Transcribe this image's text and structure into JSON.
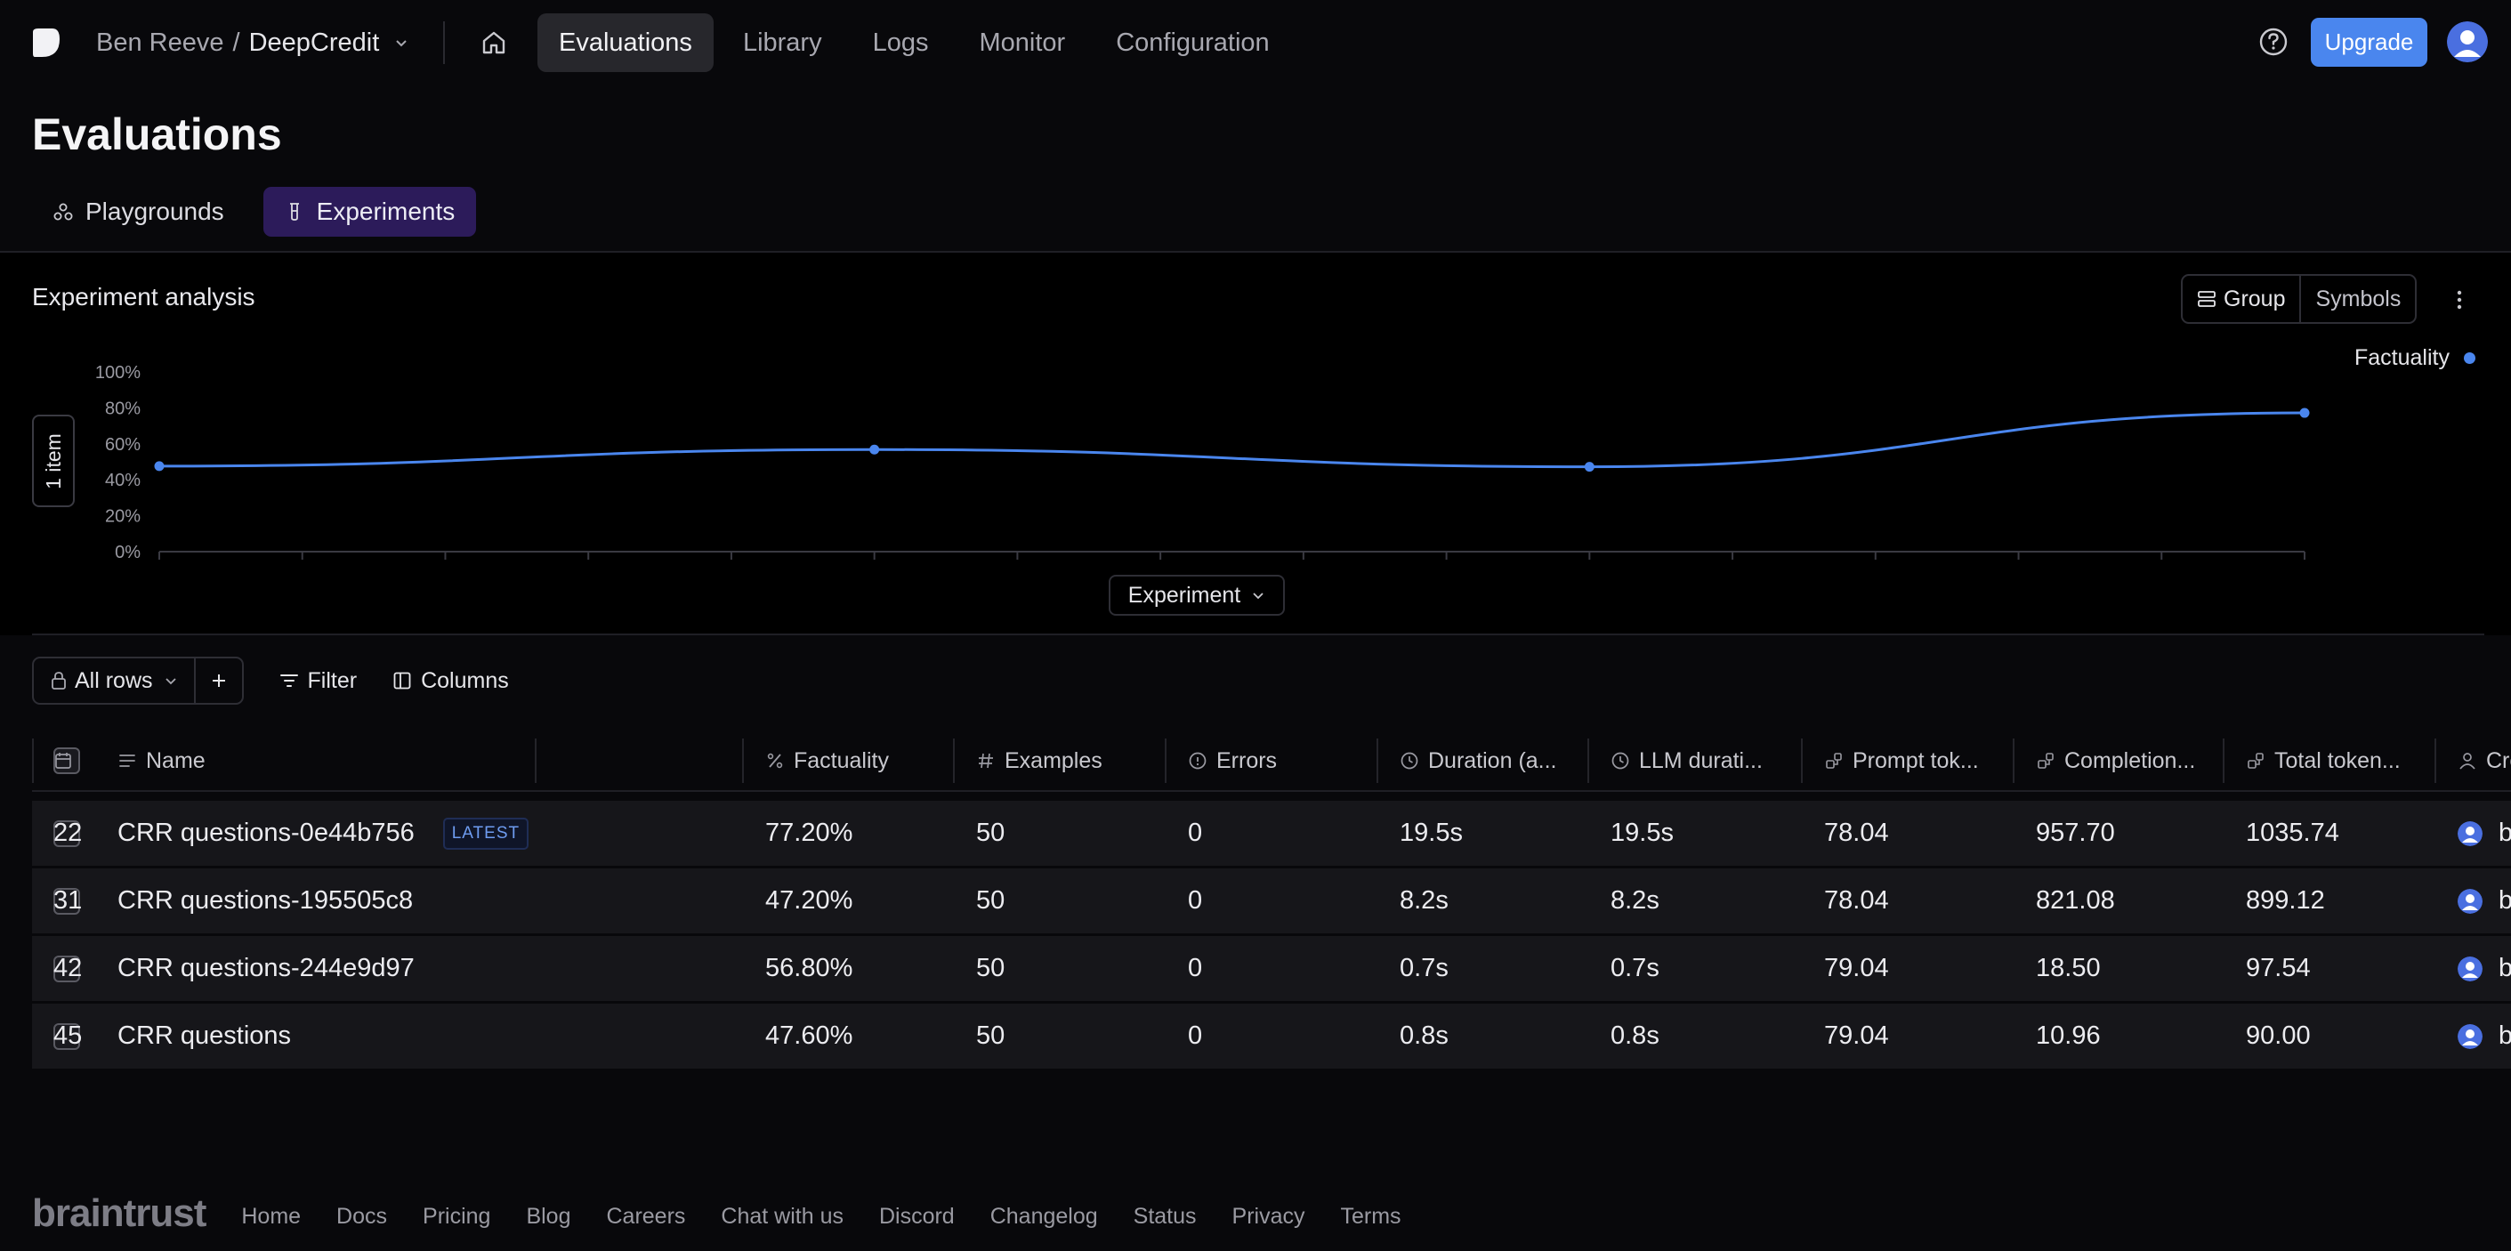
{
  "nav": {
    "owner": "Ben Reeve",
    "separator": "/",
    "project": "DeepCredit",
    "links": [
      {
        "label": "Evaluations",
        "active": true
      },
      {
        "label": "Library",
        "active": false
      },
      {
        "label": "Logs",
        "active": false
      },
      {
        "label": "Monitor",
        "active": false
      },
      {
        "label": "Configuration",
        "active": false
      }
    ],
    "upgrade_label": "Upgrade"
  },
  "page": {
    "title": "Evaluations",
    "tabs": [
      {
        "label": "Playgrounds",
        "active": false,
        "icon": "playground-icon"
      },
      {
        "label": "Experiments",
        "active": true,
        "icon": "beaker-icon"
      }
    ]
  },
  "analysis": {
    "title": "Experiment analysis",
    "group_label": "Group",
    "symbols_label": "Symbols",
    "item_label": "1 item",
    "x_axis_label": "Experiment"
  },
  "chart_data": {
    "type": "line",
    "x": [
      1,
      2,
      3,
      4
    ],
    "series": [
      {
        "name": "Factuality",
        "color": "#4a86ee",
        "values": [
          47.6,
          56.8,
          47.2,
          77.2
        ]
      }
    ],
    "y_ticks": [
      "0%",
      "20%",
      "40%",
      "60%",
      "80%",
      "100%"
    ],
    "ylim": [
      0,
      100
    ],
    "legend": "top-right",
    "grid": false
  },
  "toolbar": {
    "rows_label": "All rows",
    "filter_label": "Filter",
    "columns_label": "Columns"
  },
  "table": {
    "columns": [
      {
        "label": "Name",
        "icon": "text-icon"
      },
      {
        "label": "Factuality",
        "icon": "percent-icon"
      },
      {
        "label": "Examples",
        "icon": "hash-icon"
      },
      {
        "label": "Errors",
        "icon": "info-icon"
      },
      {
        "label": "Duration (a...",
        "icon": "clock-icon"
      },
      {
        "label": "LLM durati...",
        "icon": "clock-icon"
      },
      {
        "label": "Prompt tok...",
        "icon": "token-icon"
      },
      {
        "label": "Completion...",
        "icon": "token-icon"
      },
      {
        "label": "Total token...",
        "icon": "token-icon"
      },
      {
        "label": "Creator",
        "icon": "user-icon"
      }
    ],
    "latest_badge": "LATEST",
    "rows": [
      {
        "name": "CRR questions-0e44b756",
        "latest": true,
        "factuality": "77.20%",
        "examples": "50",
        "errors": "0",
        "duration": "19.5s",
        "llm_duration": "19.5s",
        "prompt_tokens": "78.04",
        "completion_tokens": "957.70",
        "total_tokens": "1035.74",
        "creator": "ben@reev...",
        "extra": "22"
      },
      {
        "name": "CRR questions-195505c8",
        "latest": false,
        "factuality": "47.20%",
        "examples": "50",
        "errors": "0",
        "duration": "8.2s",
        "llm_duration": "8.2s",
        "prompt_tokens": "78.04",
        "completion_tokens": "821.08",
        "total_tokens": "899.12",
        "creator": "ben@reev...",
        "extra": "31"
      },
      {
        "name": "CRR questions-244e9d97",
        "latest": false,
        "factuality": "56.80%",
        "examples": "50",
        "errors": "0",
        "duration": "0.7s",
        "llm_duration": "0.7s",
        "prompt_tokens": "79.04",
        "completion_tokens": "18.50",
        "total_tokens": "97.54",
        "creator": "ben@reev...",
        "extra": "42"
      },
      {
        "name": "CRR questions",
        "latest": false,
        "factuality": "47.60%",
        "examples": "50",
        "errors": "0",
        "duration": "0.8s",
        "llm_duration": "0.8s",
        "prompt_tokens": "79.04",
        "completion_tokens": "10.96",
        "total_tokens": "90.00",
        "creator": "ben@reev...",
        "extra": "45"
      }
    ]
  },
  "footer": {
    "logo": "braintrust",
    "links": [
      "Home",
      "Docs",
      "Pricing",
      "Blog",
      "Careers",
      "Chat with us",
      "Discord",
      "Changelog",
      "Status",
      "Privacy",
      "Terms"
    ]
  }
}
